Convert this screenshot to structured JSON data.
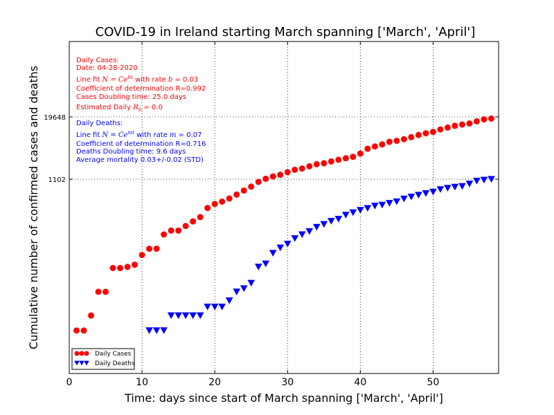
{
  "chart_data": {
    "type": "scatter",
    "title": "COVID-19 in Ireland starting March spanning ['March', 'April']",
    "xlabel": "Time: days since start of March spanning ['March', 'April']",
    "ylabel": "Cumulative number of confirmed cases and deaths",
    "xlim": [
      0,
      59
    ],
    "xticks": [
      "0",
      "10",
      "20",
      "30",
      "40",
      "50"
    ],
    "y_scale": "log",
    "yticks": [
      "1102",
      "19648"
    ],
    "grid": true,
    "legend_position": "lower-left",
    "series": [
      {
        "name": "Daily Cases",
        "color": "#ff0000",
        "marker": "circle",
        "x": [
          1,
          2,
          3,
          4,
          5,
          6,
          7,
          8,
          9,
          10,
          11,
          12,
          13,
          14,
          15,
          16,
          17,
          18,
          19,
          20,
          21,
          22,
          23,
          24,
          25,
          26,
          27,
          28,
          29,
          30,
          31,
          32,
          33,
          34,
          35,
          36,
          37,
          38,
          39,
          40,
          41,
          42,
          43,
          44,
          45,
          46,
          47,
          48,
          49,
          50,
          51,
          52,
          53,
          54,
          55,
          56,
          57,
          58
        ],
        "y": [
          1,
          1,
          2,
          6,
          6,
          18,
          18,
          19,
          21,
          33,
          44,
          44,
          85,
          102,
          102,
          126,
          156,
          190,
          290,
          350,
          390,
          450,
          540,
          650,
          780,
          970,
          1120,
          1250,
          1350,
          1520,
          1700,
          1800,
          2000,
          2200,
          2300,
          2500,
          2700,
          2900,
          3100,
          3600,
          4500,
          5000,
          5500,
          6200,
          6500,
          7000,
          7700,
          8500,
          9200,
          9800,
          11000,
          12000,
          13000,
          13800,
          14500,
          16000,
          17500,
          18200
        ]
      },
      {
        "name": "Daily Deaths",
        "color": "#0000ff",
        "marker": "triangle-down",
        "x": [
          11,
          12,
          13,
          14,
          15,
          16,
          17,
          18,
          19,
          20,
          21,
          22,
          23,
          24,
          25,
          26,
          27,
          28,
          29,
          30,
          31,
          32,
          33,
          34,
          35,
          36,
          37,
          38,
          39,
          40,
          41,
          42,
          43,
          44,
          45,
          46,
          47,
          48,
          49,
          50,
          51,
          52,
          53,
          54,
          55,
          56,
          57,
          58
        ],
        "y": [
          1,
          1,
          1,
          2,
          2,
          2,
          2,
          2,
          3,
          3,
          3,
          4,
          6,
          7,
          9,
          19,
          22,
          36,
          46,
          55,
          71,
          85,
          98,
          120,
          137,
          158,
          174,
          210,
          235,
          263,
          287,
          320,
          334,
          363,
          390,
          444,
          486,
          530,
          571,
          610,
          687,
          730,
          769,
          794,
          887,
          1014,
          1063,
          1102
        ]
      }
    ],
    "annotations": {
      "cases": [
        "Daily Cases:",
        "Date: 04-28-2020",
        "Line fit N = Ce^{bt} with rate b = 0.03",
        "Coefficient of determination R=0.992",
        "Cases Doubling time: 25.0 days",
        "Estimated Daily R_0 = 0.0"
      ],
      "deaths": [
        "Daily Deaths:",
        "Line fit N = Ce^{mt} with rate m = 0.07",
        "Coefficient of determination R=0.716",
        "Deaths Doubling time: 9.6 days",
        "Average mortality 0.03+/-0.02 (STD)"
      ]
    }
  }
}
